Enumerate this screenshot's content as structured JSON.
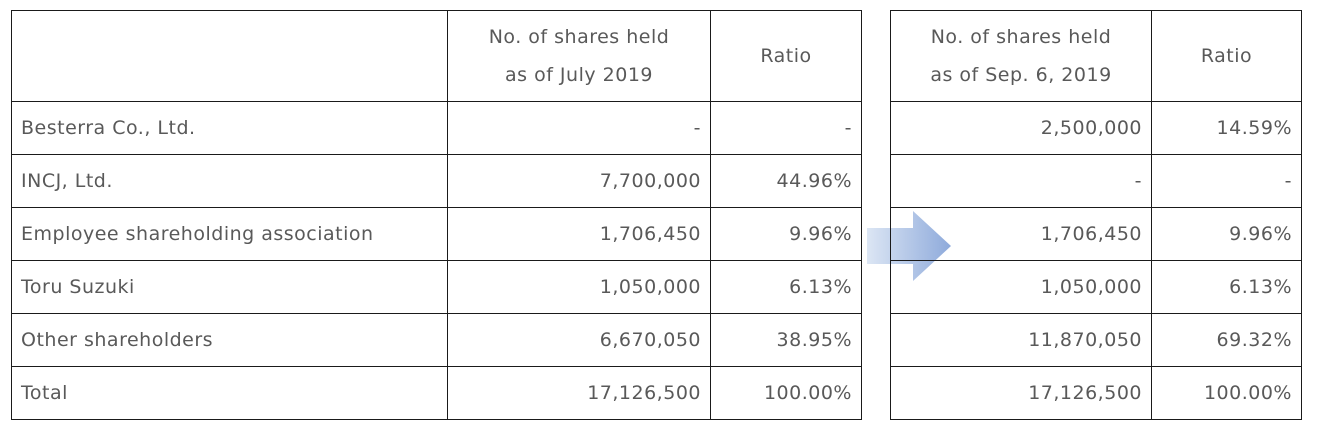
{
  "left_table": {
    "headers": {
      "name": "",
      "shares_line1": "No. of shares held",
      "shares_line2": "as of July 2019",
      "ratio": "Ratio"
    },
    "rows": [
      {
        "name": "Besterra Co., Ltd.",
        "shares": "-",
        "ratio": "-"
      },
      {
        "name": "INCJ, Ltd.",
        "shares": "7,700,000",
        "ratio": "44.96%"
      },
      {
        "name": "Employee shareholding association",
        "shares": "1,706,450",
        "ratio": "9.96%"
      },
      {
        "name": "Toru Suzuki",
        "shares": "1,050,000",
        "ratio": "6.13%"
      },
      {
        "name": "Other shareholders",
        "shares": "6,670,050",
        "ratio": "38.95%"
      },
      {
        "name": "Total",
        "shares": "17,126,500",
        "ratio": "100.00%"
      }
    ]
  },
  "right_table": {
    "headers": {
      "shares_line1": "No. of shares held",
      "shares_line2": "as of Sep. 6, 2019",
      "ratio": "Ratio"
    },
    "rows": [
      {
        "shares": "2,500,000",
        "ratio": "14.59%"
      },
      {
        "shares": "-",
        "ratio": "-"
      },
      {
        "shares": "1,706,450",
        "ratio": "9.96%"
      },
      {
        "shares": "1,050,000",
        "ratio": "6.13%"
      },
      {
        "shares": "11,870,050",
        "ratio": "69.32%"
      },
      {
        "shares": "17,126,500",
        "ratio": "100.00%"
      }
    ]
  },
  "arrow": {
    "icon": "arrow-right-icon",
    "color_light": "#dce6f4",
    "color_dark": "#8eaadb"
  }
}
